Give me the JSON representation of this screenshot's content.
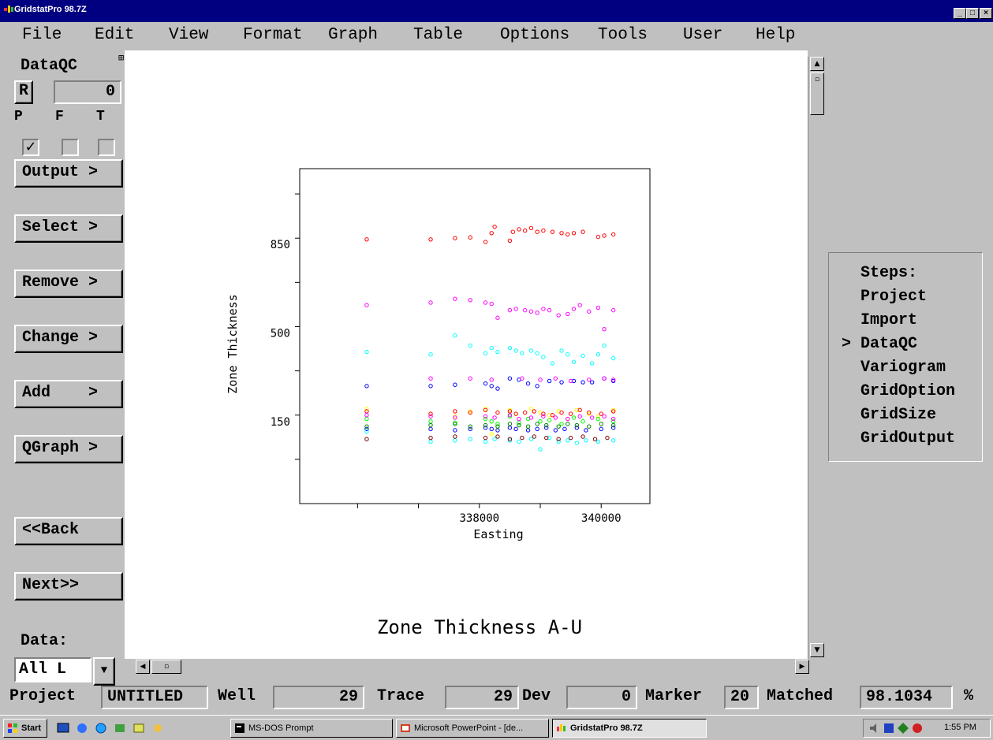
{
  "window": {
    "title": "GridstatPro 98.7Z",
    "min": "_",
    "max": "□",
    "close": "×"
  },
  "menu": [
    "File",
    "Edit",
    "View",
    "Format",
    "Graph",
    "Table",
    "Options",
    "Tools",
    "User",
    "Help"
  ],
  "left": {
    "heading": "DataQC",
    "r_button": "R",
    "r_value": "0",
    "pft": [
      "P",
      "F",
      "T"
    ],
    "checks": [
      true,
      false,
      false
    ],
    "buttons": [
      "Output >",
      "Select >",
      "Remove >",
      "Change >",
      "Add    >",
      "QGraph >"
    ],
    "back": "<<Back",
    "next": "Next>>",
    "data_label": "Data:",
    "data_value": "All L"
  },
  "steps": {
    "title": "Steps:",
    "items": [
      "Project",
      "Import",
      "DataQC",
      "Variogram",
      "GridOption",
      "GridSize",
      "GridOutput"
    ],
    "current_marker": ">",
    "current_index": 2
  },
  "status": {
    "project_label": "Project",
    "project_value": "UNTITLED",
    "well_label": "Well",
    "well_value": "29",
    "trace_label": "Trace",
    "trace_value": "29",
    "dev_label": "Dev",
    "dev_value": "0",
    "marker_label": "Marker",
    "marker_value": "20",
    "matched_label": "Matched",
    "matched_value": "98.1034",
    "matched_unit": "%"
  },
  "taskbar": {
    "start": "Start",
    "tasks": [
      "MS-DOS Prompt",
      "Microsoft PowerPoint - [de...",
      "GridstatPro 98.7Z"
    ],
    "active_task": 2,
    "clock": "1:55 PM"
  },
  "chart_data": {
    "type": "scatter",
    "title": "Zone Thickness A-U",
    "xlabel": "Easting",
    "ylabel": "Zone Thickness",
    "xticks": [
      338000,
      340000
    ],
    "yticks": [
      150,
      500,
      850
    ],
    "xlim": [
      335050,
      340800
    ],
    "ylim": [
      -175,
      1150
    ],
    "grid": false,
    "x_columns": [
      336150,
      337200,
      337600,
      337850,
      338100,
      338250,
      338400,
      338500,
      338850,
      339000,
      339150,
      339300,
      339450,
      339600,
      339750,
      339950,
      340100,
      340300,
      340500
    ],
    "series": [
      {
        "name": "",
        "color": "#ff0000",
        "points": [
          [
            336150,
            870
          ],
          [
            337200,
            870
          ],
          [
            337600,
            875
          ],
          [
            337850,
            878
          ],
          [
            338100,
            860
          ],
          [
            338200,
            895
          ],
          [
            338250,
            920
          ],
          [
            338500,
            865
          ],
          [
            338550,
            900
          ],
          [
            338650,
            910
          ],
          [
            338750,
            905
          ],
          [
            338850,
            915
          ],
          [
            338950,
            900
          ],
          [
            339050,
            905
          ],
          [
            339200,
            900
          ],
          [
            339350,
            895
          ],
          [
            339450,
            890
          ],
          [
            339550,
            895
          ],
          [
            339700,
            900
          ],
          [
            339950,
            880
          ],
          [
            340050,
            885
          ],
          [
            340200,
            890
          ]
        ]
      },
      {
        "name": "",
        "color": "#ff00ff",
        "points": [
          [
            336150,
            610
          ],
          [
            337200,
            620
          ],
          [
            337600,
            635
          ],
          [
            337850,
            630
          ],
          [
            338100,
            620
          ],
          [
            338200,
            615
          ],
          [
            338300,
            560
          ],
          [
            338500,
            590
          ],
          [
            338600,
            595
          ],
          [
            338750,
            590
          ],
          [
            338850,
            585
          ],
          [
            338950,
            580
          ],
          [
            339050,
            595
          ],
          [
            339150,
            590
          ],
          [
            339300,
            570
          ],
          [
            339450,
            575
          ],
          [
            339550,
            595
          ],
          [
            339650,
            610
          ],
          [
            339800,
            585
          ],
          [
            339950,
            600
          ],
          [
            340050,
            515
          ],
          [
            340200,
            590
          ]
        ]
      },
      {
        "name": "",
        "color": "#00ffff",
        "points": [
          [
            336150,
            425
          ],
          [
            337200,
            415
          ],
          [
            337600,
            490
          ],
          [
            337850,
            450
          ],
          [
            338100,
            420
          ],
          [
            338200,
            440
          ],
          [
            338300,
            425
          ],
          [
            338500,
            440
          ],
          [
            338600,
            430
          ],
          [
            338700,
            420
          ],
          [
            338850,
            430
          ],
          [
            338950,
            420
          ],
          [
            339050,
            405
          ],
          [
            339200,
            380
          ],
          [
            339350,
            430
          ],
          [
            339450,
            415
          ],
          [
            339550,
            385
          ],
          [
            339700,
            410
          ],
          [
            339850,
            380
          ],
          [
            339950,
            415
          ],
          [
            340050,
            450
          ],
          [
            340200,
            400
          ]
        ]
      },
      {
        "name": "",
        "color": "#0000ff",
        "points": [
          [
            336150,
            290
          ],
          [
            337200,
            290
          ],
          [
            337600,
            295
          ],
          [
            338100,
            300
          ],
          [
            338200,
            290
          ],
          [
            338300,
            280
          ],
          [
            338500,
            320
          ],
          [
            338650,
            315
          ],
          [
            338800,
            300
          ],
          [
            338950,
            290
          ],
          [
            339150,
            310
          ],
          [
            339350,
            305
          ],
          [
            339550,
            310
          ],
          [
            339700,
            305
          ],
          [
            339850,
            305
          ],
          [
            340050,
            320
          ],
          [
            340200,
            310
          ]
        ]
      },
      {
        "name": "",
        "color": "#ffff00",
        "points": [
          [
            336150,
            200
          ],
          [
            337200,
            180
          ],
          [
            337600,
            170
          ],
          [
            337850,
            190
          ],
          [
            338100,
            200
          ],
          [
            338200,
            100
          ],
          [
            338500,
            195
          ],
          [
            338600,
            180
          ],
          [
            338850,
            200
          ],
          [
            339000,
            185
          ],
          [
            339150,
            175
          ],
          [
            339300,
            190
          ],
          [
            339450,
            160
          ],
          [
            339600,
            195
          ],
          [
            339800,
            180
          ],
          [
            339950,
            170
          ],
          [
            340200,
            195
          ]
        ]
      },
      {
        "name": "",
        "color": "#00ff00",
        "points": [
          [
            336150,
            160
          ],
          [
            337200,
            150
          ],
          [
            337600,
            145
          ],
          [
            338100,
            160
          ],
          [
            338200,
            150
          ],
          [
            338300,
            140
          ],
          [
            338500,
            170
          ],
          [
            338650,
            145
          ],
          [
            338800,
            160
          ],
          [
            339000,
            150
          ],
          [
            339150,
            155
          ],
          [
            339350,
            140
          ],
          [
            339550,
            165
          ],
          [
            339700,
            150
          ],
          [
            339950,
            160
          ],
          [
            340200,
            150
          ]
        ]
      },
      {
        "name": "",
        "color": "#ff0000",
        "points": [
          [
            336150,
            190
          ],
          [
            337200,
            180
          ],
          [
            337600,
            190
          ],
          [
            337850,
            185
          ],
          [
            338100,
            195
          ],
          [
            338300,
            185
          ],
          [
            338500,
            190
          ],
          [
            338600,
            180
          ],
          [
            338750,
            185
          ],
          [
            338900,
            190
          ],
          [
            339050,
            180
          ],
          [
            339200,
            175
          ],
          [
            339350,
            185
          ],
          [
            339500,
            180
          ],
          [
            339650,
            195
          ],
          [
            339800,
            185
          ],
          [
            340000,
            180
          ],
          [
            340200,
            190
          ]
        ]
      },
      {
        "name": "",
        "color": "#0000ff",
        "points": [
          [
            336150,
            120
          ],
          [
            337200,
            120
          ],
          [
            337600,
            115
          ],
          [
            337850,
            120
          ],
          [
            338100,
            125
          ],
          [
            338200,
            120
          ],
          [
            338300,
            115
          ],
          [
            338500,
            125
          ],
          [
            338600,
            120
          ],
          [
            338800,
            115
          ],
          [
            338950,
            120
          ],
          [
            339100,
            125
          ],
          [
            339250,
            115
          ],
          [
            339400,
            120
          ],
          [
            339600,
            125
          ],
          [
            339750,
            115
          ],
          [
            340000,
            120
          ],
          [
            340200,
            125
          ]
        ]
      },
      {
        "name": "",
        "color": "#00ffff",
        "points": [
          [
            336150,
            110
          ],
          [
            337200,
            70
          ],
          [
            337600,
            75
          ],
          [
            337850,
            80
          ],
          [
            338100,
            70
          ],
          [
            338250,
            80
          ],
          [
            338500,
            75
          ],
          [
            338650,
            70
          ],
          [
            338850,
            80
          ],
          [
            339000,
            40
          ],
          [
            339150,
            85
          ],
          [
            339300,
            70
          ],
          [
            339450,
            75
          ],
          [
            339600,
            65
          ],
          [
            339750,
            75
          ],
          [
            339950,
            70
          ],
          [
            340200,
            75
          ]
        ]
      },
      {
        "name": "",
        "color": "#008000",
        "points": [
          [
            336150,
            130
          ],
          [
            337200,
            135
          ],
          [
            337600,
            140
          ],
          [
            337850,
            130
          ],
          [
            338100,
            135
          ],
          [
            338300,
            130
          ],
          [
            338500,
            140
          ],
          [
            338650,
            135
          ],
          [
            338800,
            130
          ],
          [
            338950,
            140
          ],
          [
            339100,
            135
          ],
          [
            339300,
            130
          ],
          [
            339450,
            140
          ],
          [
            339600,
            135
          ],
          [
            339800,
            130
          ],
          [
            340000,
            140
          ],
          [
            340200,
            135
          ]
        ]
      },
      {
        "name": "",
        "color": "#ff00ff",
        "points": [
          [
            336150,
            175
          ],
          [
            337200,
            170
          ],
          [
            337600,
            165
          ],
          [
            338100,
            170
          ],
          [
            338250,
            165
          ],
          [
            338500,
            175
          ],
          [
            338650,
            160
          ],
          [
            338850,
            165
          ],
          [
            339050,
            170
          ],
          [
            339250,
            165
          ],
          [
            339450,
            160
          ],
          [
            339650,
            170
          ],
          [
            339850,
            165
          ],
          [
            340050,
            170
          ],
          [
            340200,
            160
          ]
        ]
      },
      {
        "name": "",
        "color": "#800000",
        "points": [
          [
            336150,
            80
          ],
          [
            337200,
            85
          ],
          [
            337600,
            90
          ],
          [
            338100,
            85
          ],
          [
            338300,
            90
          ],
          [
            338500,
            80
          ],
          [
            338700,
            85
          ],
          [
            338900,
            90
          ],
          [
            339100,
            85
          ],
          [
            339300,
            80
          ],
          [
            339500,
            85
          ],
          [
            339700,
            90
          ],
          [
            339900,
            80
          ],
          [
            340100,
            85
          ]
        ]
      },
      {
        "name": "",
        "color": "#ff00ff",
        "points": [
          [
            337200,
            320
          ],
          [
            337850,
            320
          ],
          [
            338200,
            315
          ],
          [
            338700,
            320
          ],
          [
            339000,
            315
          ],
          [
            339250,
            320
          ],
          [
            339500,
            310
          ],
          [
            339800,
            315
          ],
          [
            340050,
            320
          ],
          [
            340200,
            315
          ]
        ]
      }
    ]
  }
}
